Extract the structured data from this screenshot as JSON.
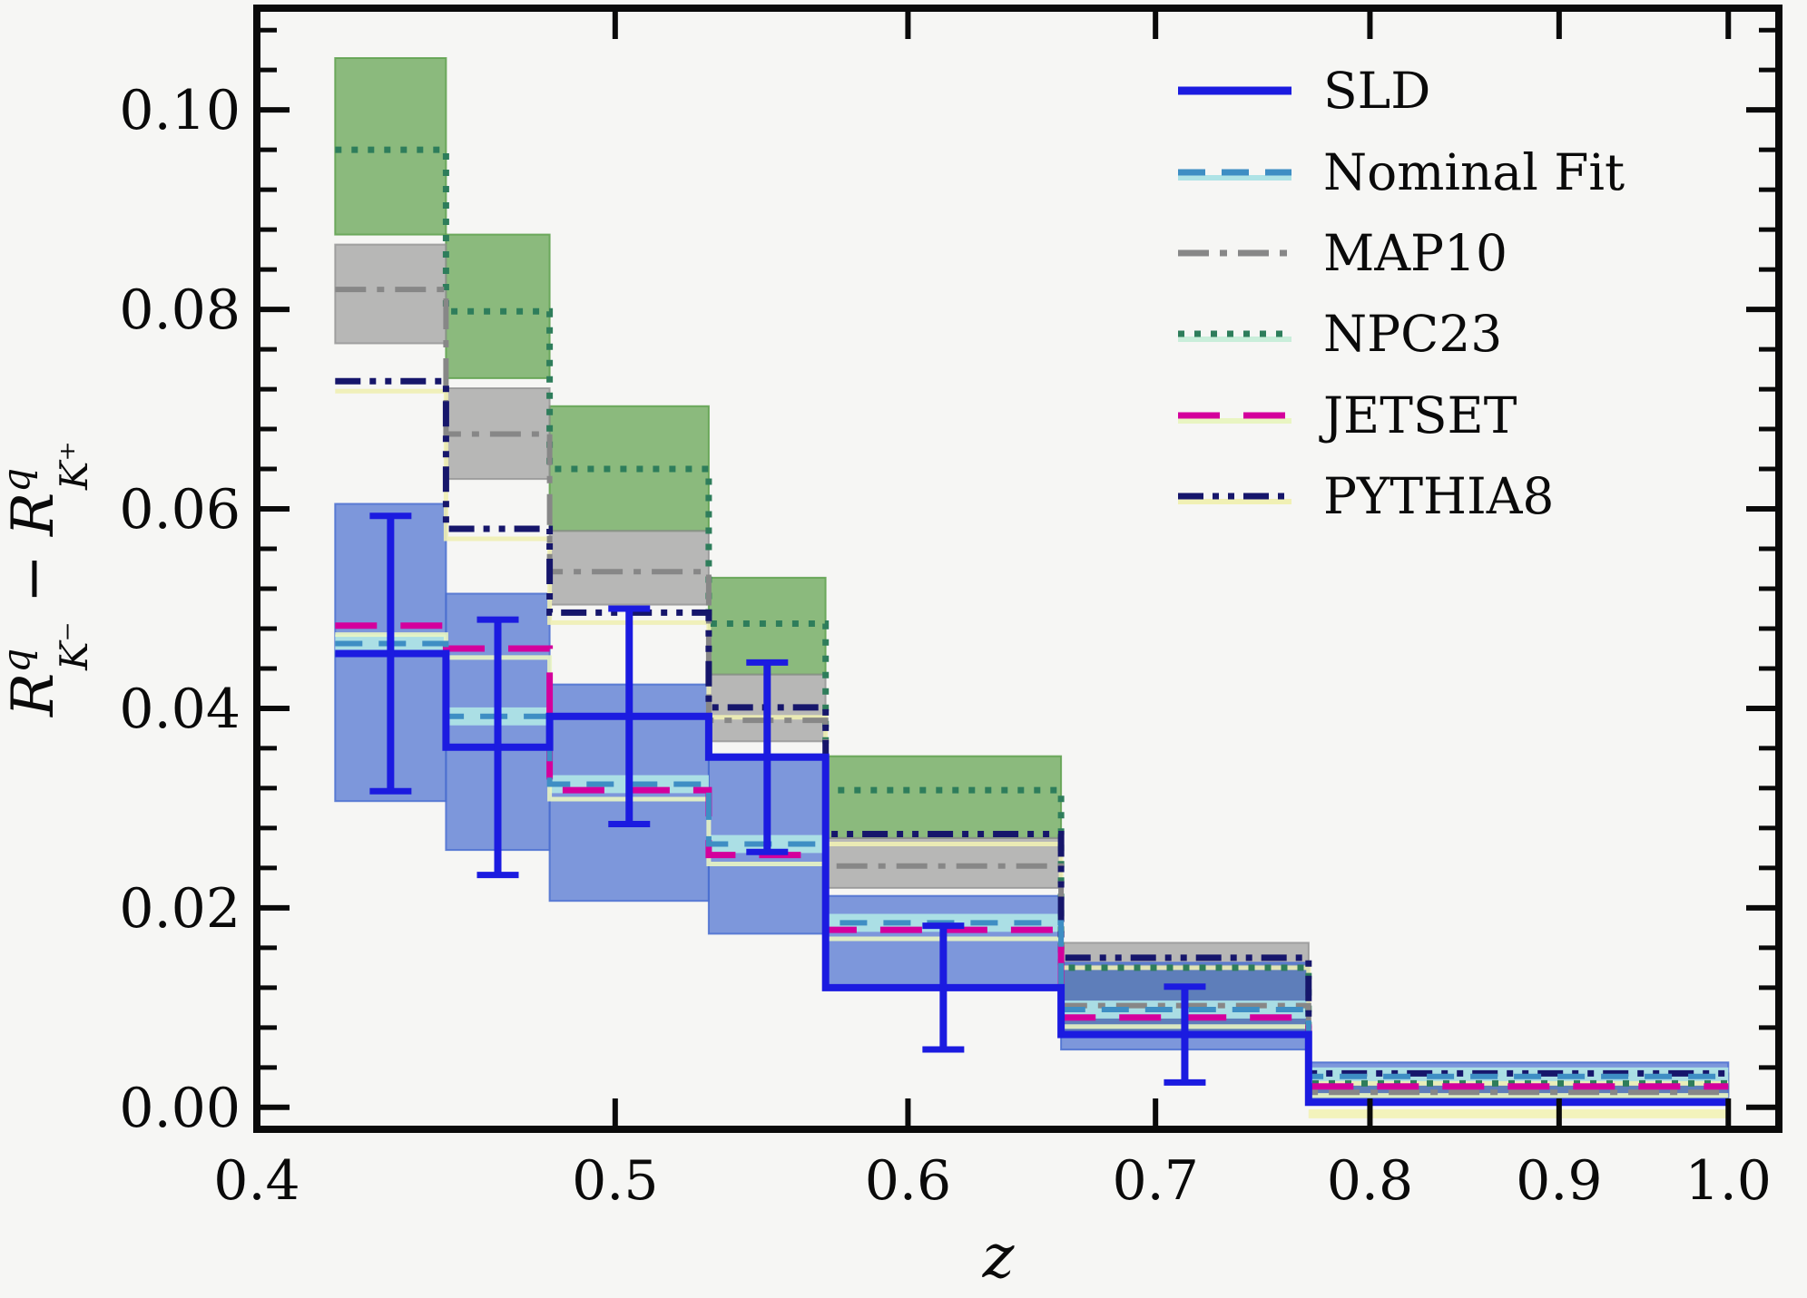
{
  "chart_data": {
    "type": "step-histogram",
    "title": "",
    "xlabel": "z",
    "ylabel_parts": {
      "term1": {
        "base": "R",
        "sup": "q",
        "sub": "K⁻"
      },
      "op": "−",
      "term2": {
        "base": "R",
        "sup": "q",
        "sub": "K⁺"
      }
    },
    "x_scale": "log",
    "xlim": [
      0.4,
      1.032
    ],
    "ylim": [
      -0.0022,
      0.1102
    ],
    "x_ticks": [
      0.4,
      0.5,
      0.6,
      0.7,
      0.8,
      0.9,
      1.0
    ],
    "x_tick_labels": [
      "0.4",
      "0.5",
      "0.6",
      "0.7",
      "0.8",
      "0.9",
      "1.0"
    ],
    "y_ticks": [
      0.0,
      0.02,
      0.04,
      0.06,
      0.08,
      0.1
    ],
    "y_tick_labels": [
      "0.00",
      "0.02",
      "0.04",
      "0.06",
      "0.08",
      "0.10"
    ],
    "y_minor_step": 0.004,
    "grid": false,
    "legend_position": "upper right",
    "bin_edges": [
      0.42,
      0.45,
      0.48,
      0.53,
      0.57,
      0.66,
      0.77,
      1.0
    ],
    "series": [
      {
        "id": "npc23",
        "label": "NPC23",
        "color": "#2e7d5b",
        "companion_color": "#c9eeda",
        "style": "dotted",
        "values": [
          0.096,
          0.0798,
          0.064,
          0.0485,
          0.0318,
          0.014,
          0.0024
        ],
        "band_lo": [
          0.0875,
          0.0731,
          0.0578,
          0.0434,
          0.027,
          0.0078,
          0.0013
        ],
        "band_hi": [
          0.1052,
          0.0875,
          0.0703,
          0.0531,
          0.0352,
          0.0142,
          0.0034
        ],
        "band_color": "#61a24f",
        "band_opacity": 0.72
      },
      {
        "id": "map10",
        "label": "MAP10",
        "color": "#878787",
        "companion_color": "",
        "style": "dashdot",
        "values": [
          0.082,
          0.0675,
          0.0537,
          0.0388,
          0.0242,
          0.0102,
          0.0015
        ],
        "band_lo": [
          0.0766,
          0.063,
          0.0504,
          0.0367,
          0.022,
          0.0073,
          0.0008
        ],
        "band_hi": [
          0.0865,
          0.0721,
          0.0578,
          0.0434,
          0.027,
          0.0165,
          0.0026
        ],
        "band_color": "#909090",
        "band_opacity": 0.62
      },
      {
        "id": "nominal",
        "label": "Nominal Fit",
        "color": "#3e8ec4",
        "companion_color": "#aee3e6",
        "style": "dashed",
        "values": [
          0.0465,
          0.0392,
          0.0324,
          0.0264,
          0.0185,
          0.0098,
          0.0031
        ],
        "band_lo": [
          0.0307,
          0.0258,
          0.0207,
          0.0174,
          0.0118,
          0.0058,
          0.0008
        ],
        "band_hi": [
          0.0605,
          0.0515,
          0.0424,
          0.0354,
          0.0212,
          0.0145,
          0.0045
        ],
        "band_color": "#4a6fd0",
        "band_opacity": 0.7
      },
      {
        "id": "pythia8",
        "label": "PYTHIA8",
        "color": "#16166b",
        "companion_color": "#f0f0b4",
        "style": "dashdotdot",
        "values": [
          0.0728,
          0.058,
          0.0496,
          0.0401,
          0.0274,
          0.015,
          0.0034
        ]
      },
      {
        "id": "jetset",
        "label": "JETSET",
        "color": "#d4009c",
        "companion_color": "#e9f5c2",
        "style": "longdash",
        "values": [
          0.0483,
          0.046,
          0.0318,
          0.0253,
          0.0178,
          0.009,
          0.0021
        ]
      },
      {
        "id": "sld",
        "label": "SLD",
        "color": "#1b1be0",
        "companion_color": "",
        "style": "solid",
        "values": [
          0.0455,
          0.0361,
          0.0392,
          0.0351,
          0.012,
          0.0073,
          0.0005
        ],
        "errors": [
          0.0138,
          0.0128,
          0.0108,
          0.0095,
          0.0062,
          0.0048,
          0.0004
        ]
      }
    ],
    "legend_order": [
      "sld",
      "nominal",
      "map10",
      "npc23",
      "jetset",
      "pythia8"
    ],
    "extra_bands": [
      {
        "name": "bin7-yellow-strip",
        "x0": 0.77,
        "x1": 1.0,
        "lo": -0.0011,
        "hi": -0.0002,
        "color": "#f2f2b8",
        "opacity": 0.95
      }
    ],
    "axis_color": "#0a0a0a"
  }
}
